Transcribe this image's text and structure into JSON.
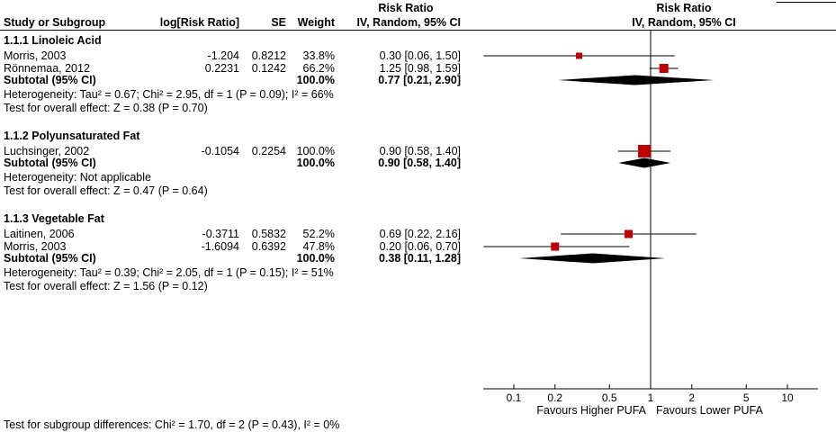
{
  "chart_data": {
    "type": "scatter",
    "variant": "forest-plot",
    "effect_measure": "Risk Ratio",
    "columns": {
      "study": "Study or Subgroup",
      "log_rr": "log[Risk Ratio]",
      "se": "SE",
      "weight": "Weight",
      "ci": "IV, Random, 95% CI"
    },
    "plot_header": {
      "line1": "Risk Ratio",
      "line2": "IV, Random, 95% CI"
    },
    "subgroups": [
      {
        "title": "1.1.1 Linoleic Acid",
        "studies": [
          {
            "name": "Morris, 2003",
            "log_rr": "-1.204",
            "se": "0.8212",
            "weight": "33.8%",
            "weight_pct": 33.8,
            "ci_text": "0.30 [0.06, 1.50]",
            "point": 0.3,
            "low": 0.06,
            "high": 1.5
          },
          {
            "name": "Rönnemaa, 2012",
            "log_rr": "0.2231",
            "se": "0.1242",
            "weight": "66.2%",
            "weight_pct": 66.2,
            "ci_text": "1.25 [0.98, 1.59]",
            "point": 1.25,
            "low": 0.98,
            "high": 1.59
          }
        ],
        "subtotal": {
          "label": "Subtotal (95% CI)",
          "weight": "100.0%",
          "ci_text": "0.77 [0.21, 2.90]",
          "point": 0.77,
          "low": 0.21,
          "high": 2.9
        },
        "heterogeneity": "Heterogeneity: Tau² = 0.67; Chi² = 2.95, df = 1 (P = 0.09); I² = 66%",
        "overall_effect": "Test for overall effect: Z = 0.38 (P = 0.70)"
      },
      {
        "title": "1.1.2 Polyunsaturated Fat",
        "studies": [
          {
            "name": "Luchsinger, 2002",
            "log_rr": "-0.1054",
            "se": "0.2254",
            "weight": "100.0%",
            "weight_pct": 100.0,
            "ci_text": "0.90 [0.58, 1.40]",
            "point": 0.9,
            "low": 0.58,
            "high": 1.4
          }
        ],
        "subtotal": {
          "label": "Subtotal (95% CI)",
          "weight": "100.0%",
          "ci_text": "0.90 [0.58, 1.40]",
          "point": 0.9,
          "low": 0.58,
          "high": 1.4
        },
        "heterogeneity": "Heterogeneity: Not applicable",
        "overall_effect": "Test for overall effect: Z = 0.47 (P = 0.64)"
      },
      {
        "title": "1.1.3 Vegetable Fat",
        "studies": [
          {
            "name": "Laitinen, 2006",
            "log_rr": "-0.3711",
            "se": "0.5832",
            "weight": "52.2%",
            "weight_pct": 52.2,
            "ci_text": "0.69 [0.22, 2.16]",
            "point": 0.69,
            "low": 0.22,
            "high": 2.16
          },
          {
            "name": "Morris, 2003",
            "log_rr": "-1.6094",
            "se": "0.6392",
            "weight": "47.8%",
            "weight_pct": 47.8,
            "ci_text": "0.20 [0.06, 0.70]",
            "point": 0.2,
            "low": 0.06,
            "high": 0.7
          }
        ],
        "subtotal": {
          "label": "Subtotal (95% CI)",
          "weight": "100.0%",
          "ci_text": "0.38 [0.11, 1.28]",
          "point": 0.38,
          "low": 0.11,
          "high": 1.28
        },
        "heterogeneity": "Heterogeneity: Tau² = 0.39; Chi² = 2.05, df = 1 (P = 0.15); I² = 51%",
        "overall_effect": "Test for overall effect: Z = 1.56 (P = 0.12)"
      }
    ],
    "axis": {
      "scale": "log",
      "range": [
        0.1,
        10
      ],
      "ticks": [
        0.1,
        0.2,
        0.5,
        1,
        2,
        5,
        10
      ],
      "tick_labels": [
        "0.1",
        "0.2",
        "0.5",
        "1",
        "2",
        "5",
        "10"
      ],
      "favours_left": "Favours Higher PUFA",
      "favours_right": "Favours Lower PUFA"
    },
    "footer": "Test for subgroup differences: Chi² = 1.70, df = 2 (P = 0.43), I² = 0%",
    "colors": {
      "square": "#c00000",
      "diamond": "#000000",
      "line": "#000000"
    }
  }
}
